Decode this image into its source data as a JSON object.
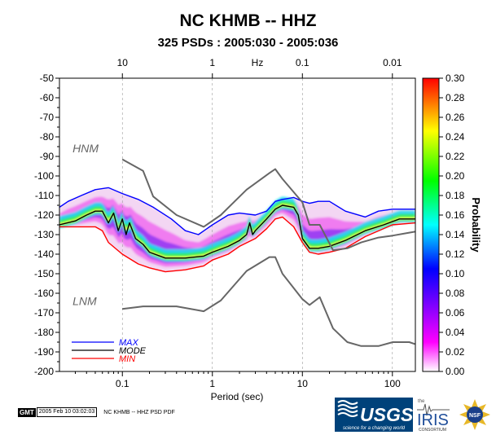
{
  "header": {
    "title": "NC KHMB -- HHZ",
    "subtitle": "325 PSDs : 2005:030 - 2005:036"
  },
  "footer": {
    "gmt": "GMT",
    "stamp": "2005 Feb 10 03:02:03",
    "label": "NC KHMB -- HHZ PSD PDF"
  },
  "logos": {
    "usgs": "USGS",
    "usgs_tagline": "science for a changing world",
    "iris_prefix": "the",
    "iris": "IRIS",
    "iris_sub": "CONSORTIUM",
    "nsf": "NSF"
  },
  "chart_data": {
    "type": "heatmap",
    "title": "NC KHMB -- HHZ",
    "subtitle": "325 PSDs : 2005:030 - 2005:036",
    "xlabel": "Period (sec)",
    "x_scale": "log",
    "xlim": [
      0.02,
      180
    ],
    "x_ticks": [
      0.1,
      1,
      10,
      100
    ],
    "x_tick_labels": [
      "0.1",
      "1",
      "10",
      "100"
    ],
    "top_axis_label": "Hz",
    "top_ticks": [
      10,
      1,
      0.1,
      0.01
    ],
    "top_tick_labels": [
      "10",
      "1",
      "0.1",
      "0.01"
    ],
    "ylim": [
      -200,
      -50
    ],
    "y_ticks": [
      -50,
      -60,
      -70,
      -80,
      -90,
      -100,
      -110,
      -120,
      -130,
      -140,
      -150,
      -160,
      -170,
      -180,
      -190,
      -200
    ],
    "y_tick_labels": [
      "-50",
      "-60",
      "-70",
      "-80",
      "-90",
      "-100",
      "-110",
      "-120",
      "-130",
      "-140",
      "-150",
      "-160",
      "-170",
      "-180",
      "-190",
      "-200"
    ],
    "colorbar": {
      "label": "Probability",
      "range": [
        0,
        0.3
      ],
      "ticks": [
        0.3,
        0.28,
        0.26,
        0.24,
        0.22,
        0.2,
        0.18,
        0.16,
        0.14,
        0.12,
        0.1,
        0.08,
        0.06,
        0.04,
        0.02,
        0.0
      ],
      "tick_labels": [
        "0.30",
        "0.28",
        "0.26",
        "0.24",
        "0.22",
        "0.20",
        "0.18",
        "0.16",
        "0.14",
        "0.12",
        "0.10",
        "0.08",
        "0.06",
        "0.04",
        "0.02",
        "0.00"
      ],
      "colors": [
        "#ffffff",
        "#ff00ff",
        "#0000ff",
        "#00ffff",
        "#00ff00",
        "#ffff00",
        "#ff0000"
      ]
    },
    "legend": {
      "position": "bottom-left",
      "entries": [
        {
          "name": "MAX",
          "color": "#0000ff"
        },
        {
          "name": "MODE",
          "color": "#000000"
        },
        {
          "name": "MIN",
          "color": "#ff0000"
        }
      ]
    },
    "series": [
      {
        "name": "MAX",
        "color": "#0000ff",
        "x": [
          0.02,
          0.025,
          0.035,
          0.05,
          0.07,
          0.1,
          0.15,
          0.22,
          0.35,
          0.5,
          0.7,
          1,
          1.5,
          2,
          3,
          4,
          5,
          6,
          8,
          10,
          12,
          15,
          20,
          30,
          50,
          70,
          100,
          180
        ],
        "y": [
          -116,
          -113,
          -110,
          -107,
          -106,
          -109,
          -112,
          -116,
          -122,
          -128,
          -130,
          -125,
          -120,
          -119,
          -120,
          -118,
          -113,
          -112,
          -111,
          -113,
          -114,
          -113,
          -113,
          -118,
          -121,
          -118,
          -117,
          -117
        ]
      },
      {
        "name": "MODE",
        "color": "#000000",
        "x": [
          0.02,
          0.03,
          0.04,
          0.05,
          0.06,
          0.07,
          0.08,
          0.09,
          0.1,
          0.11,
          0.12,
          0.14,
          0.17,
          0.2,
          0.3,
          0.5,
          0.8,
          1,
          1.5,
          2,
          2.4,
          2.6,
          2.8,
          3,
          4,
          5,
          6,
          8,
          9,
          10,
          12,
          15,
          20,
          30,
          50,
          80,
          120,
          180
        ],
        "y": [
          -125,
          -123,
          -120,
          -118,
          -118,
          -124,
          -119,
          -128,
          -122,
          -130,
          -124,
          -132,
          -135,
          -139,
          -142,
          -142,
          -141,
          -139,
          -136,
          -133,
          -130,
          -124,
          -130,
          -128,
          -122,
          -117,
          -115,
          -116,
          -120,
          -132,
          -137,
          -137,
          -136,
          -133,
          -128,
          -125,
          -122,
          -122
        ]
      },
      {
        "name": "MIN",
        "color": "#ff0000",
        "x": [
          0.02,
          0.03,
          0.05,
          0.06,
          0.07,
          0.1,
          0.15,
          0.2,
          0.3,
          0.5,
          0.8,
          1,
          1.5,
          2,
          3,
          4,
          5,
          6,
          8,
          10,
          12,
          15,
          20,
          30,
          50,
          100,
          180
        ],
        "y": [
          -126,
          -126,
          -126,
          -128,
          -134,
          -140,
          -145,
          -147,
          -149,
          -148,
          -146,
          -143,
          -140,
          -136,
          -132,
          -127,
          -122,
          -121,
          -126,
          -134,
          -139,
          -140,
          -139,
          -137,
          -131,
          -125,
          -124
        ]
      },
      {
        "name": "HNM",
        "color": "#666666",
        "x": [
          0.1,
          0.17,
          0.22,
          0.4,
          0.8,
          1.24,
          2.4,
          4.3,
          5,
          6,
          10,
          12,
          15.6,
          21.9,
          31.6,
          45,
          70,
          101,
          154,
          178
        ],
        "y": [
          -91.5,
          -97.4,
          -110.5,
          -120,
          -126,
          -120,
          -107,
          -98.5,
          -96.5,
          -101.5,
          -113.5,
          -125,
          -125,
          -138,
          -137,
          -134,
          -131.5,
          -130.5,
          -129,
          -128.5
        ]
      },
      {
        "name": "LNM",
        "color": "#666666",
        "x": [
          0.1,
          0.17,
          0.4,
          0.8,
          1.24,
          2.4,
          4.3,
          5,
          6,
          10,
          12,
          15.6,
          21.9,
          31.6,
          45,
          70,
          101,
          154,
          178
        ],
        "y": [
          -168,
          -166.7,
          -166.7,
          -169.2,
          -163.7,
          -148.6,
          -141.5,
          -141.5,
          -150,
          -163,
          -166,
          -162,
          -178,
          -185,
          -187,
          -187,
          -185,
          -185,
          -186
        ]
      }
    ],
    "annotations": [
      "HNM",
      "LNM"
    ]
  }
}
